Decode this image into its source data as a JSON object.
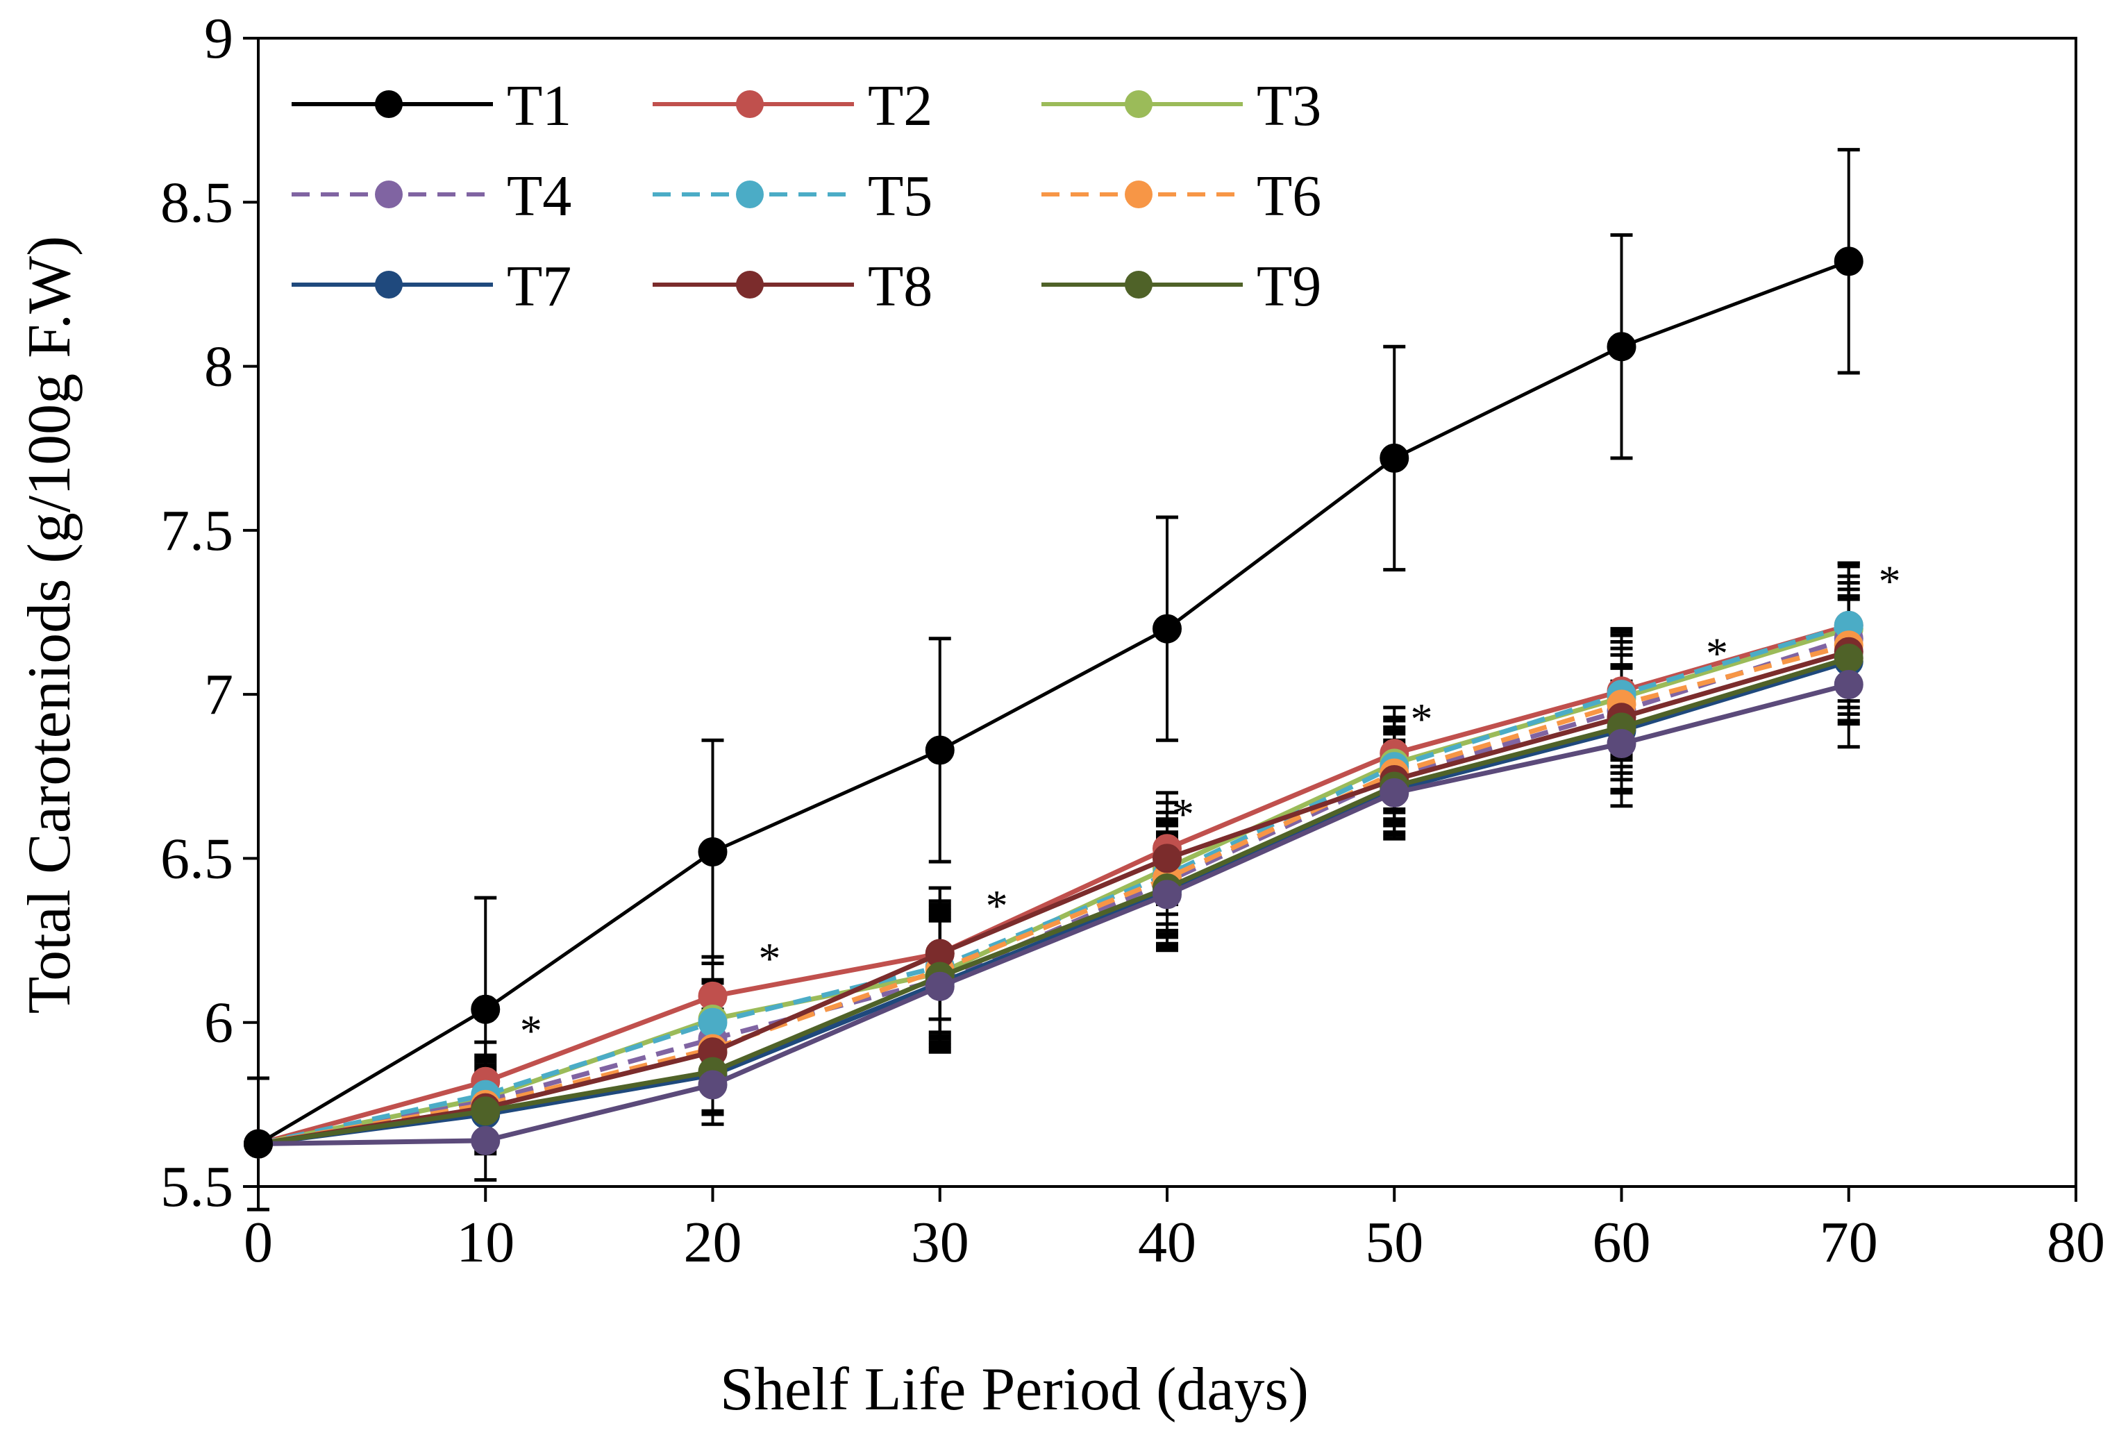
{
  "chart_data": {
    "type": "line",
    "title": "",
    "xlabel": "Shelf Life Period (days)",
    "ylabel": "Total Caroteniods (g/100g F.W)",
    "xlim": [
      0,
      80
    ],
    "ylim": [
      5.5,
      9
    ],
    "xticks": [
      "0",
      "10",
      "20",
      "30",
      "40",
      "50",
      "60",
      "70",
      "80"
    ],
    "yticks": [
      "5.5",
      "6",
      "6.5",
      "7",
      "7.5",
      "8",
      "8.5",
      "9"
    ],
    "grid": false,
    "legend_position": "top-left",
    "x": [
      0,
      10,
      20,
      30,
      40,
      50,
      60,
      70
    ],
    "series": [
      {
        "name": "T1",
        "color": "#000000",
        "dash": "solid",
        "values": [
          5.63,
          6.04,
          6.52,
          6.83,
          7.2,
          7.72,
          8.06,
          8.32
        ],
        "errors": [
          0.2,
          0.34,
          0.34,
          0.34,
          0.34,
          0.34,
          0.34,
          0.34
        ]
      },
      {
        "name": "T2",
        "color": "#C0504D",
        "dash": "solid",
        "values": [
          5.63,
          5.82,
          6.08,
          6.21,
          6.53,
          6.82,
          7.01,
          7.21
        ],
        "errors": [
          0.0,
          0.12,
          0.12,
          0.2,
          0.17,
          0.14,
          0.19,
          0.19
        ]
      },
      {
        "name": "T3",
        "color": "#9BBB59",
        "dash": "solid",
        "values": [
          5.63,
          5.77,
          6.01,
          6.15,
          6.47,
          6.79,
          6.99,
          7.2
        ],
        "errors": [
          0.0,
          0.12,
          0.12,
          0.2,
          0.17,
          0.14,
          0.19,
          0.19
        ]
      },
      {
        "name": "T4",
        "color": "#8064A2",
        "dash": "dashed",
        "values": [
          5.63,
          5.76,
          5.95,
          6.13,
          6.43,
          6.75,
          6.95,
          7.17
        ],
        "errors": [
          0.0,
          0.12,
          0.12,
          0.2,
          0.17,
          0.14,
          0.19,
          0.19
        ]
      },
      {
        "name": "T5",
        "color": "#4BACC6",
        "dash": "dashed",
        "values": [
          5.63,
          5.78,
          6.0,
          6.17,
          6.45,
          6.78,
          7.0,
          7.21
        ],
        "errors": [
          0.0,
          0.12,
          0.12,
          0.2,
          0.17,
          0.14,
          0.19,
          0.19
        ]
      },
      {
        "name": "T6",
        "color": "#F79646",
        "dash": "dashed",
        "values": [
          5.63,
          5.75,
          5.92,
          6.16,
          6.44,
          6.76,
          6.97,
          7.15
        ],
        "errors": [
          0.0,
          0.12,
          0.12,
          0.2,
          0.17,
          0.14,
          0.19,
          0.19
        ]
      },
      {
        "name": "T7",
        "color": "#1F497D",
        "dash": "solid",
        "values": [
          5.63,
          5.72,
          5.84,
          6.12,
          6.4,
          6.71,
          6.89,
          7.1
        ],
        "errors": [
          0.0,
          0.12,
          0.12,
          0.2,
          0.17,
          0.14,
          0.19,
          0.19
        ]
      },
      {
        "name": "T8",
        "color": "#7B2C2C",
        "dash": "solid",
        "values": [
          5.63,
          5.74,
          5.91,
          6.21,
          6.5,
          6.74,
          6.93,
          7.13
        ],
        "errors": [
          0.0,
          0.12,
          0.12,
          0.2,
          0.17,
          0.14,
          0.19,
          0.19
        ]
      },
      {
        "name": "T9",
        "color": "#4F6228",
        "dash": "solid",
        "values": [
          5.63,
          5.73,
          5.85,
          6.14,
          6.41,
          6.72,
          6.9,
          7.11
        ],
        "errors": [
          0.0,
          0.12,
          0.12,
          0.2,
          0.17,
          0.14,
          0.19,
          0.19
        ]
      },
      {
        "name": "",
        "color": "#5B4A7A",
        "dash": "solid",
        "values": [
          5.63,
          5.64,
          5.81,
          6.11,
          6.39,
          6.7,
          6.85,
          7.03
        ],
        "errors": [
          0.0,
          0.12,
          0.12,
          0.2,
          0.17,
          0.14,
          0.19,
          0.19
        ]
      }
    ],
    "annotations": [
      {
        "text": "*",
        "x": 12,
        "y": 5.93
      },
      {
        "text": "*",
        "x": 22.5,
        "y": 6.15
      },
      {
        "text": "*",
        "x": 32.5,
        "y": 6.31
      },
      {
        "text": "*",
        "x": 40.7,
        "y": 6.59
      },
      {
        "text": "*",
        "x": 51.2,
        "y": 6.88
      },
      {
        "text": "*",
        "x": 64.2,
        "y": 7.08
      },
      {
        "text": "*",
        "x": 71.8,
        "y": 7.3
      }
    ]
  }
}
